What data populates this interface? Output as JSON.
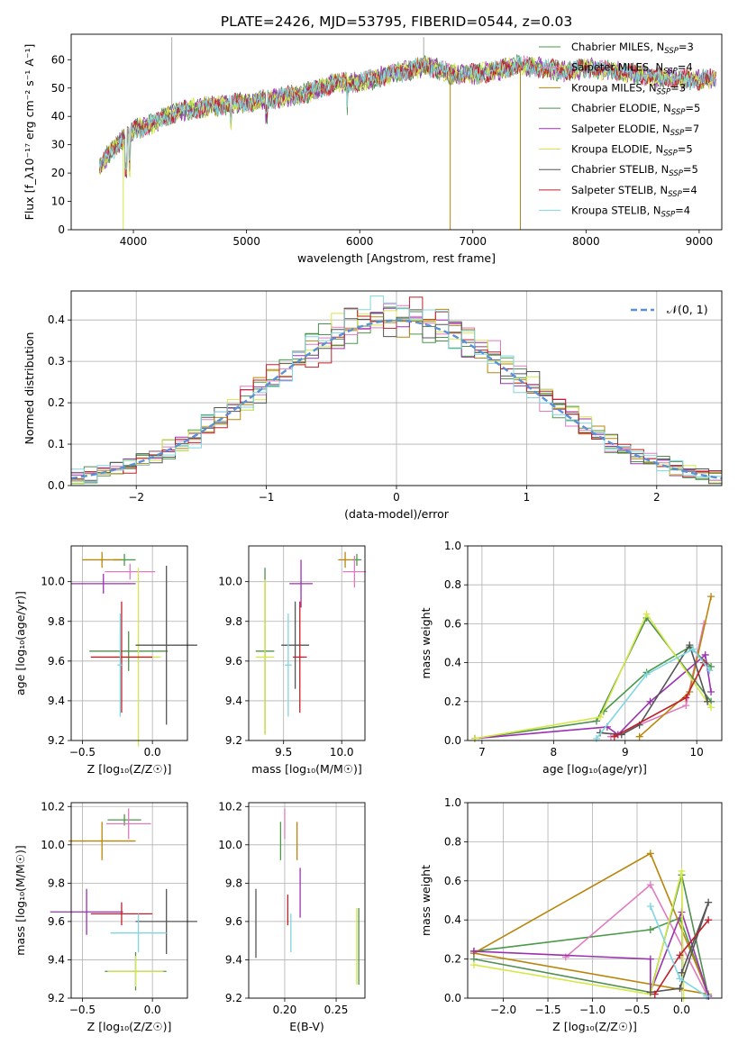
{
  "figure_title": "PLATE=2426, MJD=53795, FIBERID=0544, z=0.03",
  "colors": {
    "Chabrier MILES": "#4a9a4a",
    "Salpeter MILES": "#e07bc0",
    "Kroupa MILES": "#b8860b",
    "Chabrier ELODIE": "#4f8f4f",
    "Salpeter ELODIE": "#9b30b0",
    "Kroupa ELODIE": "#d4e84a",
    "Chabrier STELIB": "#555555",
    "Salpeter STELIB": "#c0202a",
    "Kroupa STELIB": "#7fd6e0",
    "normal": "#5b8fd6",
    "blue": "#6a8fd8",
    "orange": "#e07a2a"
  },
  "chart_data": [
    {
      "id": "spectrum",
      "type": "line",
      "title": "PLATE=2426, MJD=53795, FIBERID=0544, z=0.03",
      "xlabel": "wavelength [Angstrom, rest frame]",
      "ylabel": "Flux [f_λ10⁻¹⁷ erg cm⁻² s⁻¹ A⁻¹]",
      "xlim": [
        3450,
        9200
      ],
      "ylim": [
        0,
        69
      ],
      "xticks": [
        "4000",
        "5000",
        "6000",
        "7000",
        "8000",
        "9000"
      ],
      "yticks": [
        "0",
        "10",
        "20",
        "30",
        "40",
        "50",
        "60"
      ],
      "grid": false,
      "legend": "top-right",
      "legend_entries": [
        {
          "label": "Chabrier MILES, N",
          "sub": "SSP",
          "val": "=3"
        },
        {
          "label": "Salpeter MILES, N",
          "sub": "SSP",
          "val": "=4"
        },
        {
          "label": "Kroupa MILES, N",
          "sub": "SSP",
          "val": "=3"
        },
        {
          "label": "Chabrier ELODIE, N",
          "sub": "SSP",
          "val": "=5"
        },
        {
          "label": "Salpeter ELODIE, N",
          "sub": "SSP",
          "val": "=7"
        },
        {
          "label": "Kroupa ELODIE, N",
          "sub": "SSP",
          "val": "=5"
        },
        {
          "label": "Chabrier STELIB, N",
          "sub": "SSP",
          "val": "=5"
        },
        {
          "label": "Salpeter STELIB, N",
          "sub": "SSP",
          "val": "=4"
        },
        {
          "label": "Kroupa STELIB, N",
          "sub": "SSP",
          "val": "=4"
        }
      ],
      "continuum": {
        "x": [
          3700,
          3800,
          4000,
          4200,
          4400,
          4600,
          4800,
          5000,
          5200,
          5500,
          5800,
          6000,
          6300,
          6600,
          6800,
          7000,
          7200,
          7400,
          7600,
          7800,
          8000,
          8300,
          8600,
          8900,
          9150
        ],
        "y": [
          22,
          28,
          35,
          38,
          42,
          43,
          44,
          45,
          46,
          48,
          52,
          52,
          55,
          58,
          55,
          55,
          56,
          58,
          57,
          56,
          57,
          56,
          54,
          53,
          53
        ]
      }
    },
    {
      "id": "histogram",
      "type": "bar",
      "xlabel": "(data-model)/error",
      "ylabel": "Normed distribution",
      "xlim": [
        -2.5,
        2.5
      ],
      "ylim": [
        0,
        0.47
      ],
      "xticks": [
        "−2",
        "−1",
        "0",
        "1",
        "2"
      ],
      "yticks": [
        "0.0",
        "0.1",
        "0.2",
        "0.3",
        "0.4"
      ],
      "grid": true,
      "legend": "top-right",
      "legend_label": "𝒩(0, 1)",
      "bin_width": 0.1
    },
    {
      "id": "age_vs_Z",
      "type": "scatter",
      "xlabel": "Z [log₁₀(Z/Z☉)]",
      "ylabel": "age  [log₁₀(age/yr)]",
      "xlim": [
        -0.58,
        0.25
      ],
      "ylim": [
        9.2,
        10.18
      ],
      "xticks": [
        "−0.5",
        "0.0"
      ],
      "yticks": [
        "9.2",
        "9.4",
        "9.6",
        "9.8",
        "10.0"
      ],
      "points": [
        {
          "m": "Chabrier MILES",
          "x": -0.2,
          "y": 10.11,
          "ex": 0.08,
          "ey": 0.03
        },
        {
          "m": "Salpeter MILES",
          "x": -0.16,
          "y": 10.05,
          "ex": 0.18,
          "ey": 0.04
        },
        {
          "m": "Kroupa MILES",
          "x": -0.36,
          "y": 10.11,
          "ex": 0.14,
          "ey": 0.04
        },
        {
          "m": "Chabrier ELODIE",
          "x": -0.17,
          "y": 9.65,
          "ex": 0.28,
          "ey": 0.1
        },
        {
          "m": "Salpeter ELODIE",
          "x": -0.35,
          "y": 9.99,
          "ex": 0.23,
          "ey": 0.05
        },
        {
          "m": "Kroupa ELODIE",
          "x": -0.1,
          "y": 9.62,
          "ex": 0.16,
          "ey": 0.45
        },
        {
          "m": "Chabrier STELIB",
          "x": 0.1,
          "y": 9.68,
          "ex": 0.22,
          "ey": 0.4
        },
        {
          "m": "Salpeter STELIB",
          "x": -0.22,
          "y": 9.62,
          "ex": 0.22,
          "ey": 0.28
        },
        {
          "m": "Kroupa STELIB",
          "x": -0.23,
          "y": 9.58,
          "ex": 0.02,
          "ey": 0.26
        }
      ]
    },
    {
      "id": "age_vs_mass",
      "type": "scatter",
      "xlabel": "mass [log₁₀(M/M☉)]",
      "ylabel": "",
      "xlim": [
        9.2,
        10.2
      ],
      "ylim": [
        9.2,
        10.18
      ],
      "xticks": [
        "9.5",
        "10.0"
      ],
      "yticks": [
        "9.2",
        "9.4",
        "9.6",
        "9.8",
        "10.0"
      ],
      "points": [
        {
          "m": "Chabrier MILES",
          "x": 10.13,
          "y": 10.11,
          "ex": 0.04,
          "ey": 0.03
        },
        {
          "m": "Salpeter MILES",
          "x": 10.11,
          "y": 10.05,
          "ex": 0.1,
          "ey": 0.08
        },
        {
          "m": "Kroupa MILES",
          "x": 10.03,
          "y": 10.11,
          "ex": 0.06,
          "ey": 0.04
        },
        {
          "m": "Chabrier ELODIE",
          "x": 9.34,
          "y": 9.65,
          "ex": 0.08,
          "ey": 0.42
        },
        {
          "m": "Salpeter ELODIE",
          "x": 9.65,
          "y": 9.99,
          "ex": 0.1,
          "ey": 0.12
        },
        {
          "m": "Kroupa ELODIE",
          "x": 9.34,
          "y": 9.62,
          "ex": 0.08,
          "ey": 0.39
        },
        {
          "m": "Chabrier STELIB",
          "x": 9.6,
          "y": 9.68,
          "ex": 0.12,
          "ey": 0.22
        },
        {
          "m": "Salpeter STELIB",
          "x": 9.64,
          "y": 9.62,
          "ex": 0.06,
          "ey": 0.28
        },
        {
          "m": "Kroupa STELIB",
          "x": 9.54,
          "y": 9.58,
          "ex": 0.03,
          "ey": 0.26
        }
      ]
    },
    {
      "id": "mw_vs_age",
      "type": "line",
      "xlabel": "age  [log₁₀(age/yr)]",
      "ylabel": "mass weight",
      "xlim": [
        6.8,
        10.35
      ],
      "ylim": [
        0,
        1
      ],
      "xticks": [
        "7",
        "8",
        "9",
        "10"
      ],
      "yticks": [
        "0.0",
        "0.2",
        "0.4",
        "0.6",
        "0.8",
        "1.0"
      ],
      "series": [
        {
          "m": "Chabrier MILES",
          "x": [
            8.7,
            9.3,
            9.9,
            10.2
          ],
          "y": [
            0.15,
            0.35,
            0.48,
            0.38
          ]
        },
        {
          "m": "Salpeter MILES",
          "x": [
            8.8,
            9.85,
            10.1
          ],
          "y": [
            0.02,
            0.18,
            0.6
          ]
        },
        {
          "m": "Kroupa MILES",
          "x": [
            9.2,
            9.9,
            10.2
          ],
          "y": [
            0.02,
            0.25,
            0.74
          ]
        },
        {
          "m": "Chabrier ELODIE",
          "x": [
            6.9,
            8.6,
            9.3,
            10.2
          ],
          "y": [
            0.01,
            0.1,
            0.63,
            0.2
          ]
        },
        {
          "m": "Salpeter ELODIE",
          "x": [
            6.9,
            8.75,
            8.9,
            9.35,
            10.12,
            10.2
          ],
          "y": [
            0.01,
            0.07,
            0.03,
            0.2,
            0.44,
            0.25
          ]
        },
        {
          "m": "Kroupa ELODIE",
          "x": [
            6.9,
            8.65,
            9.3,
            10.2
          ],
          "y": [
            0.01,
            0.12,
            0.65,
            0.17
          ]
        },
        {
          "m": "Chabrier STELIB",
          "x": [
            8.65,
            8.95,
            9.2,
            9.9,
            10.15
          ],
          "y": [
            0.04,
            0.03,
            0.08,
            0.49,
            0.2
          ]
        },
        {
          "m": "Salpeter STELIB",
          "x": [
            8.85,
            9.85,
            10.1
          ],
          "y": [
            0.02,
            0.22,
            0.4
          ]
        },
        {
          "m": "Kroupa STELIB",
          "x": [
            8.6,
            9.3,
            9.95,
            10.18
          ],
          "y": [
            0.01,
            0.34,
            0.47,
            0.36
          ]
        }
      ]
    },
    {
      "id": "mass_vs_Z",
      "type": "scatter",
      "xlabel": "Z [log₁₀(Z/Z☉)]",
      "ylabel": "mass [log₁₀(M/M☉)]",
      "xlim": [
        -0.58,
        0.25
      ],
      "ylim": [
        9.2,
        10.22
      ],
      "xticks": [
        "−0.5",
        "0.0"
      ],
      "yticks": [
        "9.2",
        "9.4",
        "9.6",
        "9.8",
        "10.0",
        "10.2"
      ],
      "points": [
        {
          "m": "Chabrier MILES",
          "x": -0.2,
          "y": 10.13,
          "ex": 0.12,
          "ey": 0.03
        },
        {
          "m": "Salpeter MILES",
          "x": -0.17,
          "y": 10.11,
          "ex": 0.16,
          "ey": 0.08
        },
        {
          "m": "Kroupa MILES",
          "x": -0.36,
          "y": 10.02,
          "ex": 0.24,
          "ey": 0.1
        },
        {
          "m": "Chabrier ELODIE",
          "x": -0.12,
          "y": 9.34,
          "ex": 0.22,
          "ey": 0.1
        },
        {
          "m": "Salpeter ELODIE",
          "x": -0.47,
          "y": 9.65,
          "ex": 0.26,
          "ey": 0.12
        },
        {
          "m": "Kroupa ELODIE",
          "x": -0.12,
          "y": 9.34,
          "ex": 0.2,
          "ey": 0.08
        },
        {
          "m": "Chabrier STELIB",
          "x": 0.1,
          "y": 9.6,
          "ex": 0.22,
          "ey": 0.17
        },
        {
          "m": "Salpeter STELIB",
          "x": -0.22,
          "y": 9.64,
          "ex": 0.22,
          "ey": 0.06
        },
        {
          "m": "Kroupa STELIB",
          "x": -0.1,
          "y": 9.54,
          "ex": 0.2,
          "ey": 0.1
        }
      ]
    },
    {
      "id": "mass_vs_ebv",
      "type": "scatter",
      "xlabel": "E(B-V)",
      "ylabel": "",
      "xlim": [
        0.165,
        0.278
      ],
      "ylim": [
        9.2,
        10.22
      ],
      "xticks": [
        "0.20",
        "0.25"
      ],
      "yticks": [
        "9.2",
        "9.4",
        "9.6",
        "9.8",
        "10.0",
        "10.2"
      ],
      "points": [
        {
          "m": "Chabrier MILES",
          "x": 0.196,
          "y": 10.02,
          "ex": 0,
          "ey": 0.1
        },
        {
          "m": "Salpeter MILES",
          "x": 0.2,
          "y": 10.11,
          "ex": 0,
          "ey": 0.08
        },
        {
          "m": "Kroupa MILES",
          "x": 0.212,
          "y": 10.02,
          "ex": 0,
          "ey": 0.1
        },
        {
          "m": "Chabrier ELODIE",
          "x": 0.272,
          "y": 9.47,
          "ex": 0,
          "ey": 0.2
        },
        {
          "m": "Salpeter ELODIE",
          "x": 0.215,
          "y": 9.75,
          "ex": 0,
          "ey": 0.13
        },
        {
          "m": "Kroupa ELODIE",
          "x": 0.27,
          "y": 9.47,
          "ex": 0,
          "ey": 0.2
        },
        {
          "m": "Chabrier STELIB",
          "x": 0.172,
          "y": 9.59,
          "ex": 0,
          "ey": 0.18
        },
        {
          "m": "Salpeter STELIB",
          "x": 0.203,
          "y": 9.66,
          "ex": 0,
          "ey": 0.08
        },
        {
          "m": "Kroupa STELIB",
          "x": 0.206,
          "y": 9.54,
          "ex": 0,
          "ey": 0.1
        }
      ]
    },
    {
      "id": "mw_vs_Z",
      "type": "line",
      "xlabel": "Z [log₁₀(Z/Z☉)]",
      "ylabel": "mass weight",
      "xlim": [
        -2.4,
        0.45
      ],
      "ylim": [
        0,
        1
      ],
      "xticks": [
        "−2.0",
        "−1.5",
        "−1.0",
        "−0.5",
        "0.0"
      ],
      "yticks": [
        "0.0",
        "0.2",
        "0.4",
        "0.6",
        "0.8",
        "1.0"
      ],
      "series": [
        {
          "m": "Chabrier MILES",
          "x": [
            -2.33,
            -0.35,
            -0.02,
            0.3
          ],
          "y": [
            0.24,
            0.35,
            0.41,
            0.01
          ]
        },
        {
          "m": "Salpeter MILES",
          "x": [
            -1.3,
            -0.35,
            0.28
          ],
          "y": [
            0.21,
            0.58,
            0.02
          ]
        },
        {
          "m": "Kroupa MILES",
          "x": [
            -2.33,
            -0.35,
            0.3,
            -2.33
          ],
          "y": [
            0.23,
            0.74,
            0.02,
            0.23
          ]
        },
        {
          "m": "Chabrier ELODIE",
          "x": [
            -2.33,
            -0.35,
            0.0,
            0.3
          ],
          "y": [
            0.2,
            0.03,
            0.63,
            0.01
          ]
        },
        {
          "m": "Salpeter ELODIE",
          "x": [
            -2.33,
            -0.35,
            -0.35,
            0.0,
            0.3
          ],
          "y": [
            0.24,
            0.2,
            0.03,
            0.44,
            0.01
          ]
        },
        {
          "m": "Kroupa ELODIE",
          "x": [
            -2.33,
            -0.35,
            0.0,
            0.02
          ],
          "y": [
            0.17,
            0.02,
            0.65,
            0.0
          ]
        },
        {
          "m": "Chabrier STELIB",
          "x": [
            -0.35,
            -0.02,
            0.3,
            0.0
          ],
          "y": [
            0.03,
            0.05,
            0.49,
            0.13
          ]
        },
        {
          "m": "Salpeter STELIB",
          "x": [
            -0.3,
            -0.02,
            0.3
          ],
          "y": [
            0.02,
            0.22,
            0.4
          ]
        },
        {
          "m": "Kroupa STELIB",
          "x": [
            -0.35,
            -0.02,
            0.28
          ],
          "y": [
            0.47,
            0.1,
            0.01
          ]
        }
      ]
    }
  ]
}
